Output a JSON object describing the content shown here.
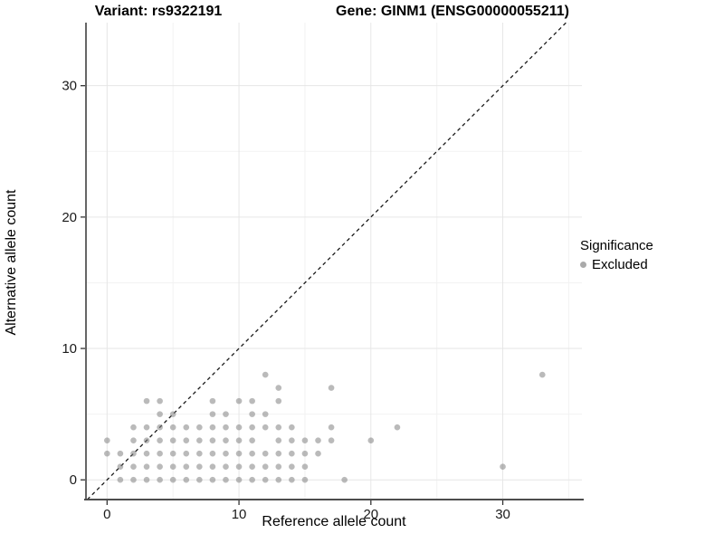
{
  "titles": {
    "variant": "Variant: rs9322191",
    "gene": "Gene: GINM1 (ENSG00000055211)"
  },
  "axes": {
    "x": {
      "label": "Reference allele count",
      "tick_labels": [
        "0",
        "10",
        "20",
        "30"
      ]
    },
    "y": {
      "label": "Alternative allele count",
      "tick_labels": [
        "0",
        "10",
        "20",
        "30"
      ]
    }
  },
  "legend": {
    "title": "Significance",
    "items": [
      {
        "label": "Excluded",
        "color": "#aaaaaa"
      }
    ]
  },
  "colors": {
    "point": "rgba(130,130,130,0.55)",
    "grid_major": "#e6e6e6",
    "grid_minor": "#f2f2f2",
    "axis_line": "#333333",
    "baseline": "#4d4d4d",
    "identity_line": "#1a1a1a",
    "tick": "#333333"
  },
  "chart_data": {
    "type": "scatter",
    "title": "Variant: rs9322191 / Gene: GINM1 (ENSG00000055211)",
    "xlabel": "Reference allele count",
    "ylabel": "Alternative allele count",
    "xlim": [
      -1.6,
      36.0
    ],
    "ylim": [
      -1.5,
      34.8
    ],
    "x_major_ticks": [
      0,
      10,
      20,
      30
    ],
    "y_major_ticks": [
      0,
      10,
      20,
      30
    ],
    "x_minor_ticks": [
      5,
      15,
      25,
      35
    ],
    "y_minor_ticks": [
      5,
      15,
      25
    ],
    "grid": true,
    "legend_position": "right",
    "identity_line": {
      "equation": "y = x",
      "style": "dashed"
    },
    "series": [
      {
        "name": "Excluded",
        "points": [
          [
            1,
            0
          ],
          [
            2,
            0
          ],
          [
            3,
            0
          ],
          [
            4,
            0
          ],
          [
            5,
            0
          ],
          [
            6,
            0
          ],
          [
            7,
            0
          ],
          [
            8,
            0
          ],
          [
            9,
            0
          ],
          [
            10,
            0
          ],
          [
            11,
            0
          ],
          [
            12,
            0
          ],
          [
            13,
            0
          ],
          [
            14,
            0
          ],
          [
            15,
            0
          ],
          [
            18,
            0
          ],
          [
            1,
            1
          ],
          [
            2,
            1
          ],
          [
            3,
            1
          ],
          [
            4,
            1
          ],
          [
            5,
            1
          ],
          [
            6,
            1
          ],
          [
            7,
            1
          ],
          [
            8,
            1
          ],
          [
            9,
            1
          ],
          [
            10,
            1
          ],
          [
            11,
            1
          ],
          [
            12,
            1
          ],
          [
            13,
            1
          ],
          [
            14,
            1
          ],
          [
            15,
            1
          ],
          [
            30,
            1
          ],
          [
            0,
            2
          ],
          [
            1,
            2
          ],
          [
            2,
            2
          ],
          [
            3,
            2
          ],
          [
            4,
            2
          ],
          [
            5,
            2
          ],
          [
            6,
            2
          ],
          [
            7,
            2
          ],
          [
            8,
            2
          ],
          [
            9,
            2
          ],
          [
            10,
            2
          ],
          [
            11,
            2
          ],
          [
            12,
            2
          ],
          [
            13,
            2
          ],
          [
            14,
            2
          ],
          [
            15,
            2
          ],
          [
            16,
            2
          ],
          [
            0,
            3
          ],
          [
            2,
            3
          ],
          [
            3,
            3
          ],
          [
            4,
            3
          ],
          [
            5,
            3
          ],
          [
            6,
            3
          ],
          [
            7,
            3
          ],
          [
            8,
            3
          ],
          [
            9,
            3
          ],
          [
            10,
            3
          ],
          [
            11,
            3
          ],
          [
            13,
            3
          ],
          [
            14,
            3
          ],
          [
            15,
            3
          ],
          [
            16,
            3
          ],
          [
            17,
            3
          ],
          [
            20,
            3
          ],
          [
            2,
            4
          ],
          [
            3,
            4
          ],
          [
            4,
            4
          ],
          [
            5,
            4
          ],
          [
            6,
            4
          ],
          [
            7,
            4
          ],
          [
            8,
            4
          ],
          [
            9,
            4
          ],
          [
            10,
            4
          ],
          [
            11,
            4
          ],
          [
            12,
            4
          ],
          [
            13,
            4
          ],
          [
            14,
            4
          ],
          [
            17,
            4
          ],
          [
            22,
            4
          ],
          [
            4,
            5
          ],
          [
            5,
            5
          ],
          [
            8,
            5
          ],
          [
            9,
            5
          ],
          [
            11,
            5
          ],
          [
            12,
            5
          ],
          [
            3,
            6
          ],
          [
            4,
            6
          ],
          [
            8,
            6
          ],
          [
            10,
            6
          ],
          [
            11,
            6
          ],
          [
            13,
            6
          ],
          [
            13,
            7
          ],
          [
            17,
            7
          ],
          [
            12,
            8
          ],
          [
            33,
            8
          ]
        ]
      }
    ]
  }
}
